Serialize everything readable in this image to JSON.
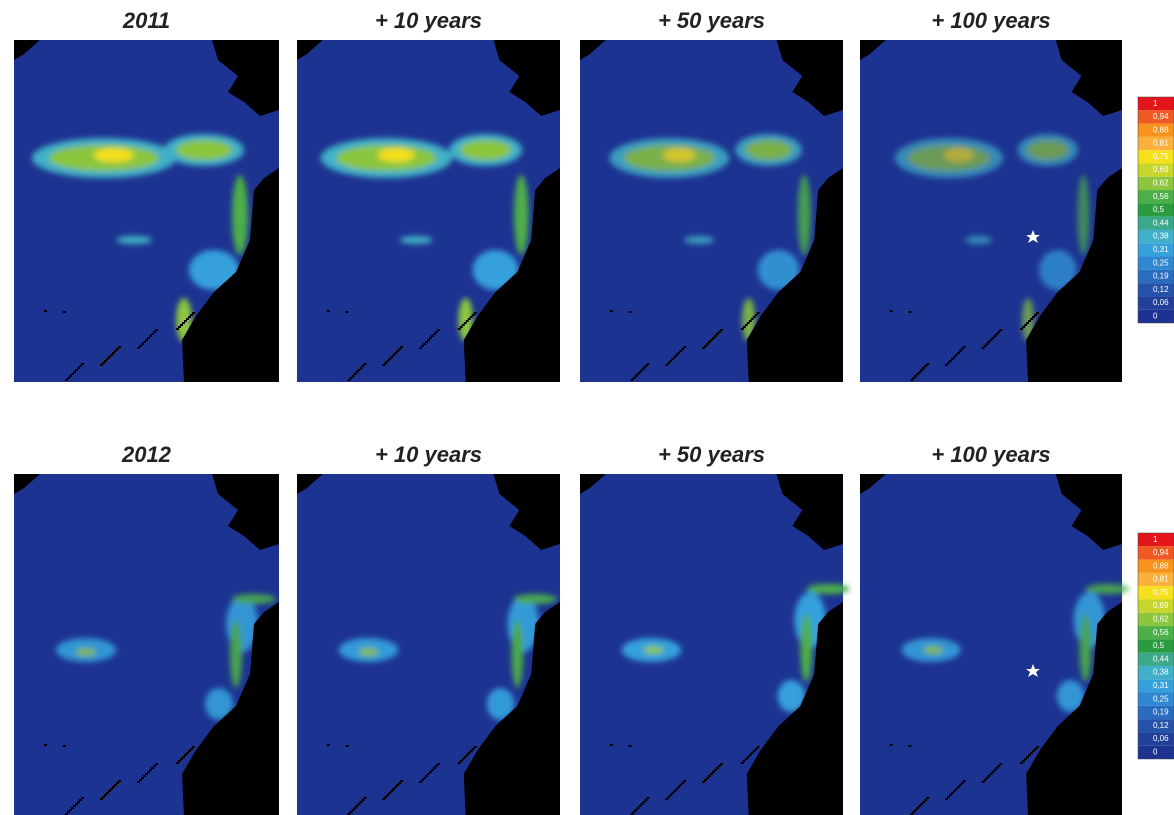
{
  "rows": [
    {
      "panels": [
        "2011",
        "+ 10 years",
        "+ 50 years",
        "+ 100 years"
      ]
    },
    {
      "panels": [
        "2012",
        "+ 10 years",
        "+ 50 years",
        "+ 100 years"
      ]
    }
  ],
  "legends": [
    {
      "labels": [
        "1",
        "0,94",
        "0,88",
        "0,81",
        "0,75",
        "0,69",
        "0,62",
        "0,56",
        "0,5",
        "0,44",
        "0,38",
        "0,31",
        "0,25",
        "0,19",
        "0,12",
        "0,06",
        "0"
      ]
    },
    {
      "labels": [
        "1",
        "0,94",
        "0,88",
        "0,81",
        "0,75",
        "0,69",
        "0,62",
        "0,56",
        "0,5",
        "0,44",
        "0,38",
        "0,31",
        "0,25",
        "0,19",
        "0,12",
        "0,06",
        "0"
      ]
    }
  ]
}
